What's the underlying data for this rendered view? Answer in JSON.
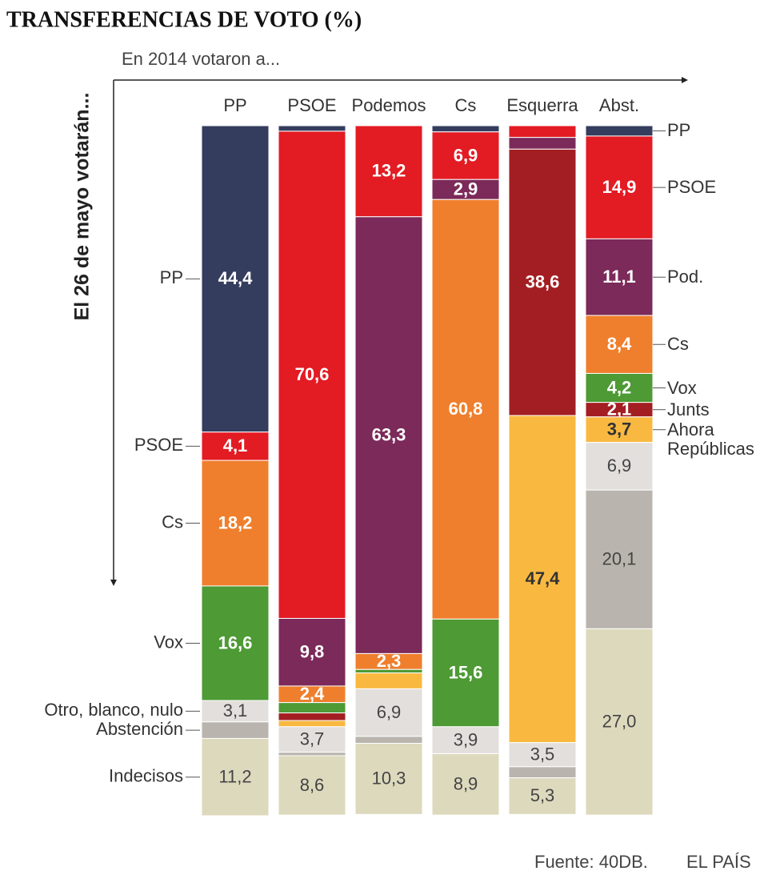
{
  "chart_data": {
    "type": "stacked_bar",
    "title": "TRANSFERENCIAS DE VOTO (%)",
    "x_axis_label": "En 2014 votaron a...",
    "y_axis_label": "El 26 de mayo votarán...",
    "categories": [
      "PP",
      "PSOE",
      "Podemos",
      "Cs",
      "Esquerra",
      "Abst."
    ],
    "series": [
      {
        "name": "PP",
        "left_label": "PP",
        "right_label": "PP",
        "color": "#353d5e",
        "label_color": "#ffffff",
        "values": [
          44.4,
          0.8,
          0,
          0.9,
          0,
          1.5
        ],
        "value_labels": [
          "44,4",
          null,
          null,
          null,
          null,
          null
        ]
      },
      {
        "name": "PSOE",
        "left_label": "PSOE",
        "right_label": "PSOE",
        "color": "#e31b23",
        "label_color": "#ffffff",
        "values": [
          4.1,
          70.6,
          13.2,
          6.9,
          1.7,
          14.9
        ],
        "value_labels": [
          "4,1",
          "70,6",
          "13,2",
          "6,9",
          null,
          "14,9"
        ]
      },
      {
        "name": "Podemos",
        "right_label": "Pod.",
        "color": "#7b2a5a",
        "label_color": "#ffffff",
        "values": [
          0,
          9.8,
          63.3,
          2.9,
          1.7,
          11.1
        ],
        "value_labels": [
          null,
          "9,8",
          "63,3",
          "2,9",
          null,
          "11,1"
        ]
      },
      {
        "name": "Cs",
        "left_label": "Cs",
        "right_label": "Cs",
        "color": "#ef7f2d",
        "label_color": "#ffffff",
        "values": [
          18.2,
          2.4,
          2.3,
          60.8,
          0,
          8.4
        ],
        "value_labels": [
          "18,2",
          "2,4",
          "2,3",
          "60,8",
          null,
          "8,4"
        ]
      },
      {
        "name": "Vox",
        "left_label": "Vox",
        "right_label": "Vox",
        "color": "#4e9a35",
        "label_color": "#ffffff",
        "values": [
          16.6,
          1.5,
          0.5,
          15.6,
          0,
          4.2
        ],
        "value_labels": [
          "16,6",
          null,
          null,
          "15,6",
          null,
          "4,2"
        ]
      },
      {
        "name": "Junts",
        "right_label": "Junts",
        "color": "#a31e22",
        "label_color": "#ffffff",
        "values": [
          0,
          1.1,
          0,
          0,
          38.6,
          2.1
        ],
        "value_labels": [
          null,
          null,
          null,
          null,
          "38,6",
          "2,1"
        ]
      },
      {
        "name": "Ahora Repúblicas",
        "right_label": "Ahora Repúblicas",
        "color": "#f9b941",
        "label_color": "#333333",
        "values": [
          0,
          0.9,
          2.3,
          0,
          47.4,
          3.7
        ],
        "value_labels": [
          null,
          null,
          null,
          null,
          "47,4",
          "3,7"
        ]
      },
      {
        "name": "Otro, blanco, nulo",
        "left_label": "Otro, blanco, nulo",
        "color": "#e3dfdc",
        "label_color": "#444444",
        "values": [
          3.1,
          3.7,
          6.9,
          3.9,
          3.5,
          6.9
        ],
        "value_labels": [
          "3,1",
          "3,7",
          "6,9",
          "3,9",
          "3,5",
          "6,9"
        ]
      },
      {
        "name": "Abstención",
        "left_label": "Abstención",
        "color": "#b9b5ae",
        "label_color": "#444444",
        "values": [
          2.4,
          0.5,
          1.0,
          0,
          1.6,
          20.1
        ],
        "value_labels": [
          null,
          null,
          null,
          null,
          null,
          "20,1"
        ]
      },
      {
        "name": "Indecisos",
        "left_label": "Indecisos",
        "color": "#ddd9bd",
        "label_color": "#444444",
        "values": [
          11.2,
          8.6,
          10.3,
          8.9,
          5.3,
          27.0
        ],
        "value_labels": [
          "11,2",
          "8,6",
          "10,3",
          "8,9",
          "5,3",
          "27,0"
        ]
      }
    ],
    "source": "Fuente: 40DB.",
    "brand": "EL PAÍS"
  }
}
